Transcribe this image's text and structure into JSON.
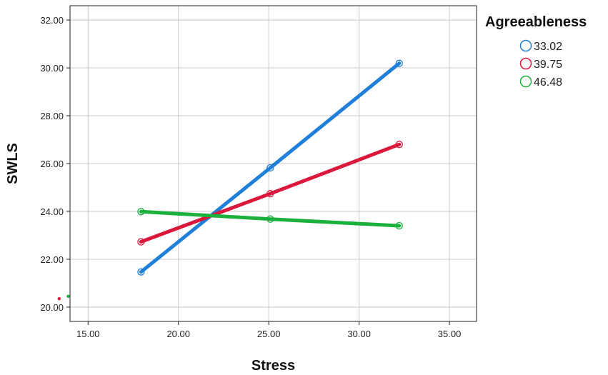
{
  "chart_data": {
    "type": "line",
    "xlabel": "Stress",
    "ylabel": "SWLS",
    "xlim": [
      14,
      36.5
    ],
    "ylim": [
      19.4,
      32.6
    ],
    "xticks": [
      "15.00",
      "20.00",
      "25.00",
      "30.00",
      "35.00"
    ],
    "yticks": [
      "20.00",
      "22.00",
      "24.00",
      "26.00",
      "28.00",
      "30.00",
      "32.00"
    ],
    "grid": true,
    "legend": {
      "title": "Agreeableness",
      "position": "top-right",
      "entries": [
        "33.02",
        "39.75",
        "46.48"
      ]
    },
    "x": [
      17.93,
      25.08,
      32.22
    ],
    "series": [
      {
        "name": "33.02",
        "color": "#1f7fd9",
        "values": [
          21.47,
          25.82,
          30.19
        ]
      },
      {
        "name": "39.75",
        "color": "#d9183c",
        "values": [
          22.73,
          24.74,
          26.8
        ]
      },
      {
        "name": "46.48",
        "color": "#19b03b",
        "values": [
          23.99,
          23.68,
          23.4
        ]
      }
    ],
    "stray_points": [
      {
        "color": "#d9183c",
        "x": 13.4,
        "y": 20.35
      },
      {
        "color": "#19b03b",
        "x": 13.9,
        "y": 20.45
      }
    ]
  }
}
